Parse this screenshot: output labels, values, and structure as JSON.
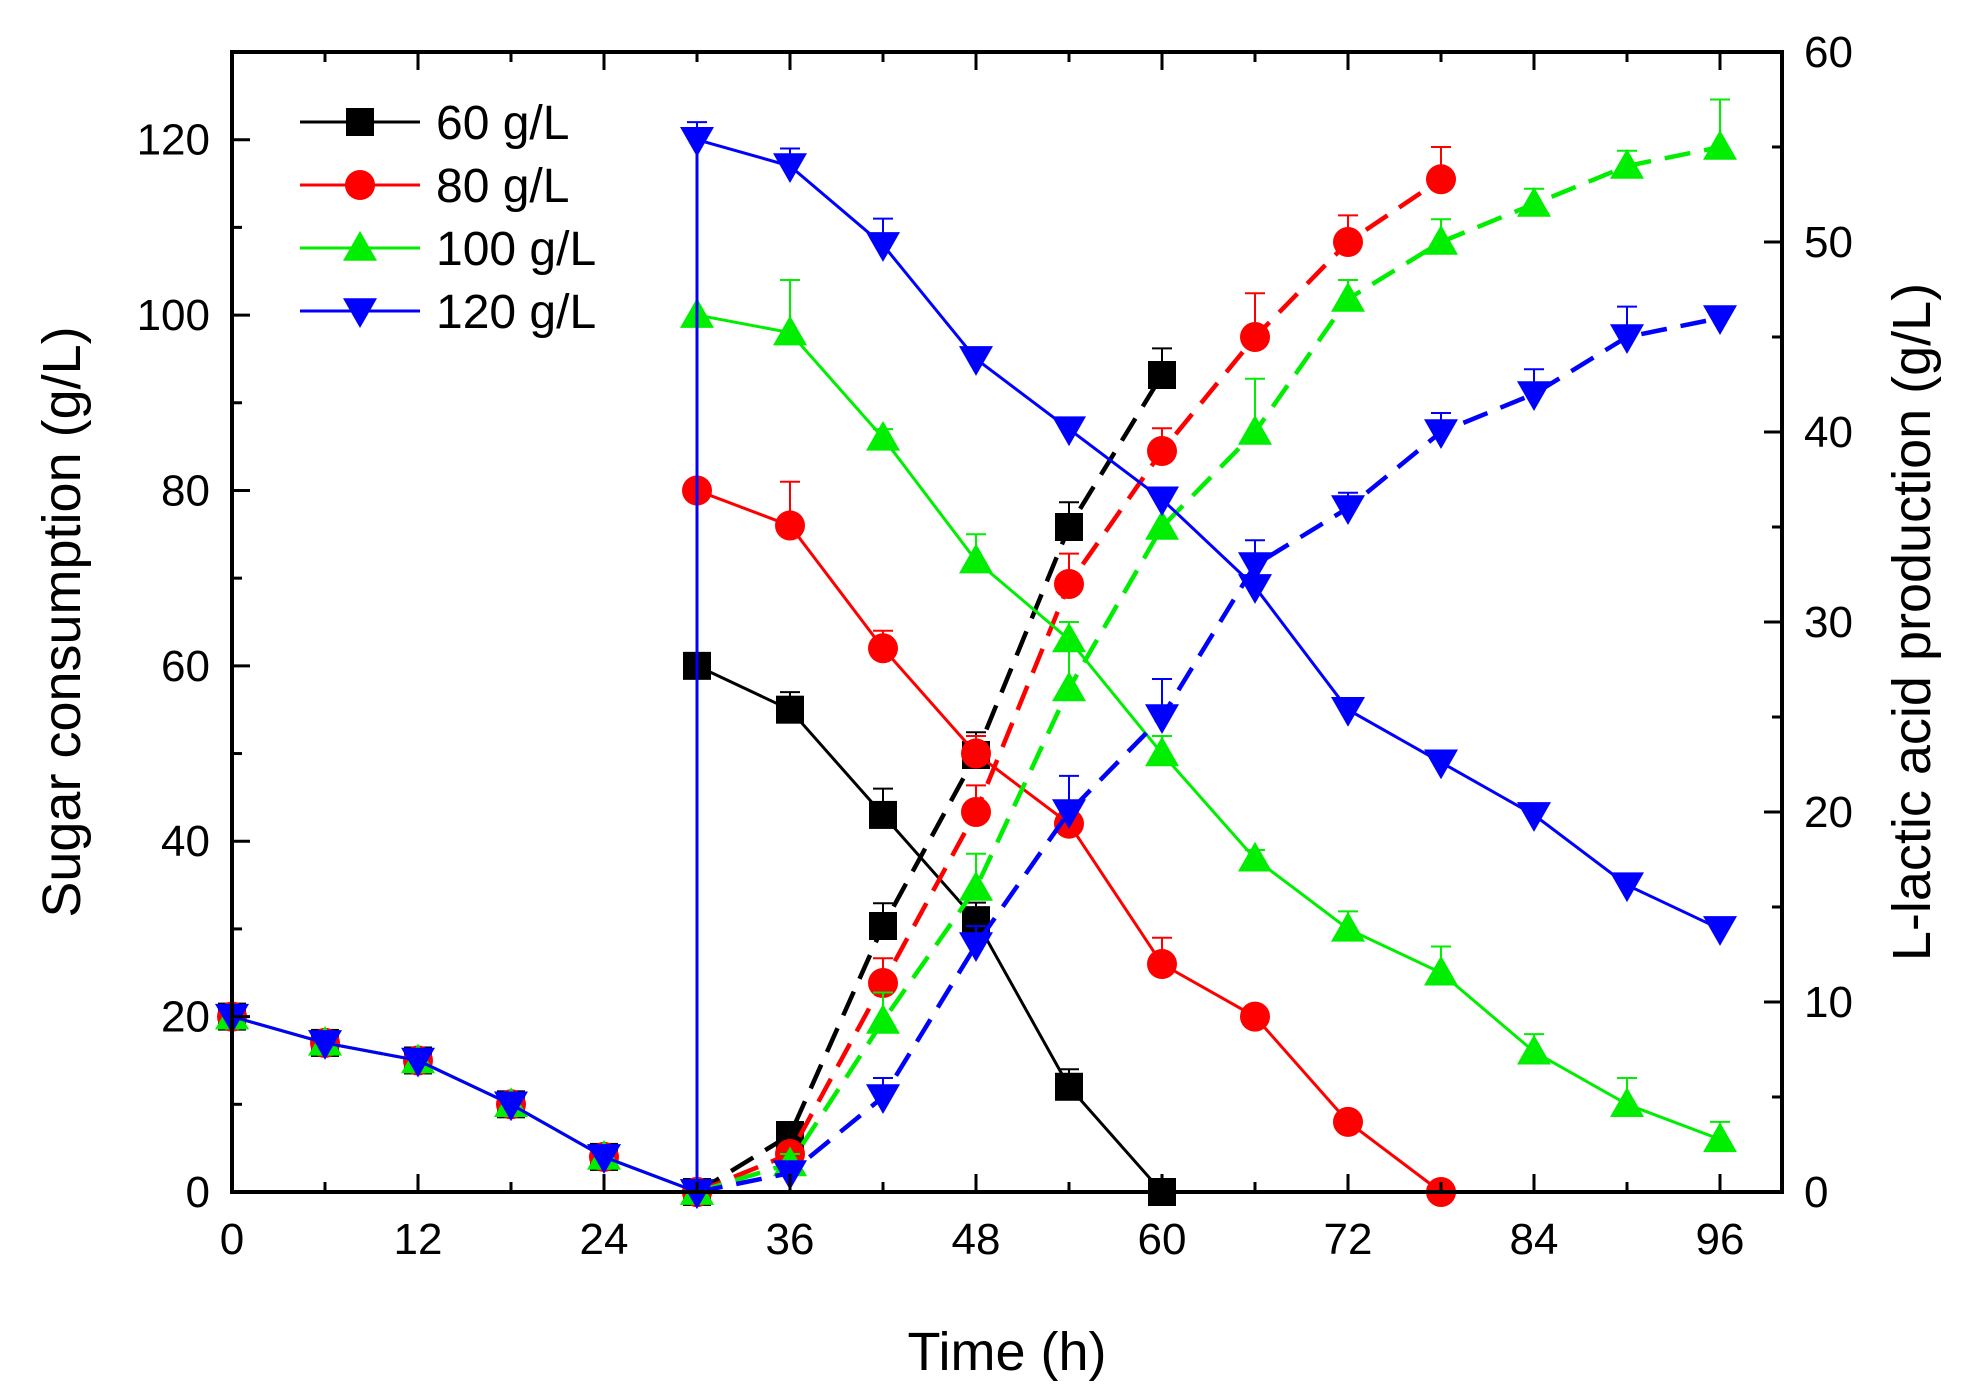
{
  "chart_data": {
    "type": "line",
    "title": "",
    "xlabel": "Time (h)",
    "ylabel": "Sugar consumption (g/L)",
    "y2label": "L-lactic acid production (g/L)",
    "xlim": [
      0,
      100
    ],
    "ylim": [
      0,
      130
    ],
    "y2lim": [
      0,
      60
    ],
    "xticks": [
      0,
      12,
      24,
      36,
      48,
      60,
      72,
      84,
      96
    ],
    "yticks": [
      0,
      20,
      40,
      60,
      80,
      100,
      120
    ],
    "y2ticks": [
      0,
      10,
      20,
      30,
      40,
      50,
      60
    ],
    "xtick_labels": [
      "0",
      "12",
      "24",
      "36",
      "48",
      "60",
      "72",
      "84",
      "96"
    ],
    "ytick_labels": [
      "0",
      "20",
      "40",
      "60",
      "80",
      "100",
      "120"
    ],
    "y2tick_labels": [
      "0",
      "10",
      "20",
      "30",
      "40",
      "50",
      "60"
    ],
    "legend_position": "top-left",
    "grid": false,
    "series": [
      {
        "name": "60 g/L",
        "color": "#000000",
        "marker": "square",
        "sugar": [
          [
            0,
            20
          ],
          [
            6,
            17
          ],
          [
            12,
            15
          ],
          [
            18,
            10
          ],
          [
            24,
            4
          ],
          [
            30,
            0
          ],
          [
            30,
            60
          ],
          [
            36,
            55
          ],
          [
            42,
            43
          ],
          [
            48,
            31
          ],
          [
            54,
            12
          ],
          [
            60,
            0
          ]
        ],
        "sugar_err": [
          1,
          1,
          1,
          1,
          1,
          0,
          0,
          2,
          3,
          2,
          2,
          0
        ],
        "lactic": [
          [
            30,
            0
          ],
          [
            36,
            3
          ],
          [
            42,
            14
          ],
          [
            48,
            23
          ],
          [
            54,
            35
          ],
          [
            60,
            43
          ]
        ],
        "lactic_err": [
          0,
          0.5,
          1.2,
          1.2,
          1.3,
          1.4
        ]
      },
      {
        "name": "80 g/L",
        "color": "#ff0000",
        "marker": "circle",
        "sugar": [
          [
            0,
            20
          ],
          [
            6,
            17
          ],
          [
            12,
            15
          ],
          [
            18,
            10
          ],
          [
            24,
            4
          ],
          [
            30,
            0
          ],
          [
            30,
            80
          ],
          [
            36,
            76
          ],
          [
            42,
            62
          ],
          [
            48,
            50
          ],
          [
            54,
            42
          ],
          [
            60,
            26
          ],
          [
            66,
            20
          ],
          [
            72,
            8
          ],
          [
            78,
            0
          ]
        ],
        "sugar_err": [
          1,
          1,
          1,
          1,
          1,
          0,
          0,
          5,
          2,
          2,
          2,
          3,
          1,
          1,
          0
        ],
        "lactic": [
          [
            30,
            0
          ],
          [
            36,
            2
          ],
          [
            42,
            11
          ],
          [
            48,
            20
          ],
          [
            54,
            32
          ],
          [
            60,
            39
          ],
          [
            66,
            45
          ],
          [
            72,
            50
          ],
          [
            78,
            53.3
          ]
        ],
        "lactic_err": [
          0,
          0.4,
          1.3,
          1.4,
          1.6,
          1.2,
          2.3,
          1.4,
          1.7
        ]
      },
      {
        "name": "100 g/L",
        "color": "#00ee00",
        "marker": "triangle-up",
        "sugar": [
          [
            0,
            20
          ],
          [
            6,
            17
          ],
          [
            12,
            15
          ],
          [
            18,
            10
          ],
          [
            24,
            4
          ],
          [
            30,
            0
          ],
          [
            30,
            100
          ],
          [
            36,
            98
          ],
          [
            42,
            86
          ],
          [
            48,
            72
          ],
          [
            54,
            63
          ],
          [
            60,
            50
          ],
          [
            66,
            38
          ],
          [
            72,
            30
          ],
          [
            78,
            25
          ],
          [
            84,
            16
          ],
          [
            90,
            10
          ],
          [
            96,
            6
          ]
        ],
        "sugar_err": [
          1,
          1,
          1,
          1,
          1,
          0,
          0,
          6,
          1,
          3,
          2,
          2,
          1,
          2,
          3,
          2,
          3,
          2
        ],
        "lactic": [
          [
            30,
            0
          ],
          [
            36,
            1.5
          ],
          [
            42,
            9
          ],
          [
            48,
            16
          ],
          [
            54,
            26.5
          ],
          [
            60,
            35
          ],
          [
            66,
            40
          ],
          [
            72,
            47
          ],
          [
            78,
            50
          ],
          [
            84,
            52
          ],
          [
            90,
            54
          ],
          [
            96,
            55
          ]
        ],
        "lactic_err": [
          0,
          0.5,
          1.5,
          1.8,
          2,
          1.8,
          2.8,
          1,
          1.2,
          0.8,
          0.8,
          2.5
        ]
      },
      {
        "name": "120 g/L",
        "color": "#0000ff",
        "marker": "triangle-down",
        "sugar": [
          [
            0,
            20
          ],
          [
            6,
            17
          ],
          [
            12,
            15
          ],
          [
            18,
            10
          ],
          [
            24,
            4
          ],
          [
            30,
            0
          ],
          [
            30,
            120
          ],
          [
            36,
            117
          ],
          [
            42,
            108
          ],
          [
            48,
            95
          ],
          [
            54,
            87
          ],
          [
            60,
            79
          ],
          [
            66,
            69
          ],
          [
            72,
            55
          ],
          [
            78,
            49
          ],
          [
            84,
            43
          ],
          [
            90,
            35
          ],
          [
            96,
            30
          ]
        ],
        "sugar_err": [
          1,
          1,
          1,
          1,
          1,
          0,
          2,
          2,
          3,
          1,
          1,
          1,
          1,
          1,
          1,
          1,
          1,
          1
        ],
        "lactic": [
          [
            30,
            0
          ],
          [
            36,
            1
          ],
          [
            42,
            5
          ],
          [
            48,
            13
          ],
          [
            54,
            20
          ],
          [
            60,
            25
          ],
          [
            66,
            33
          ],
          [
            72,
            36
          ],
          [
            78,
            40
          ],
          [
            84,
            42
          ],
          [
            90,
            45
          ],
          [
            96,
            46
          ]
        ],
        "lactic_err": [
          0,
          0.4,
          1,
          1,
          1.9,
          2,
          1.3,
          0.8,
          1,
          1.3,
          1.6,
          0.6
        ]
      }
    ]
  }
}
